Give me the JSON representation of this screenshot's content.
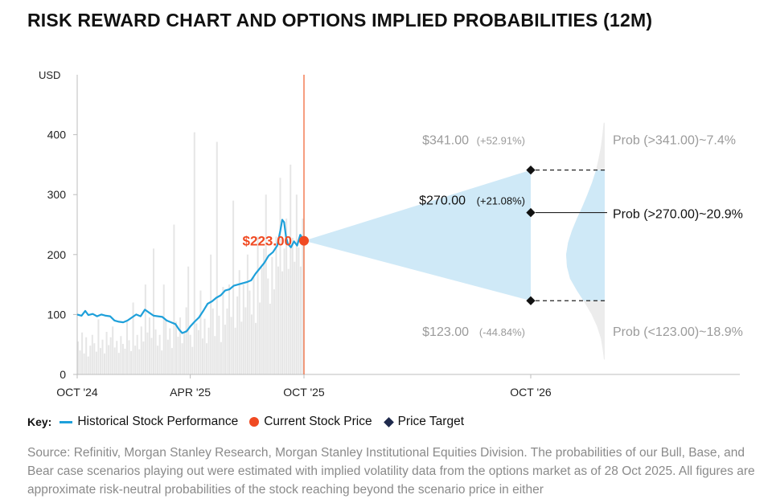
{
  "title": "RISK REWARD CHART AND OPTIONS IMPLIED PROBABILITIES (12M)",
  "colors": {
    "history": "#1ea0da",
    "current": "#f04a22",
    "target": "#1f2a4d",
    "cone": "#cfe9f7",
    "volume": "#e6e6e6",
    "divider": "#f06a3c"
  },
  "chart_data": {
    "type": "line",
    "ylabel": "USD",
    "ylim": [
      0,
      500
    ],
    "yticks": [
      0,
      100,
      200,
      300,
      400
    ],
    "xticks": [
      {
        "label": "OCT '24",
        "date": "2024-10-28"
      },
      {
        "label": "APR '25",
        "date": "2025-04-28"
      },
      {
        "label": "OCT '25",
        "date": "2025-10-28"
      },
      {
        "label": "OCT '26",
        "date": "2026-10-28"
      }
    ],
    "history": {
      "name": "Historical Stock Performance",
      "points": [
        [
          "2024-10-28",
          100
        ],
        [
          "2024-11-04",
          98
        ],
        [
          "2024-11-10",
          106
        ],
        [
          "2024-11-15",
          99
        ],
        [
          "2024-11-22",
          101
        ],
        [
          "2024-11-29",
          97
        ],
        [
          "2024-12-06",
          100
        ],
        [
          "2024-12-13",
          98
        ],
        [
          "2024-12-20",
          97
        ],
        [
          "2024-12-27",
          90
        ],
        [
          "2025-01-03",
          88
        ],
        [
          "2025-01-10",
          87
        ],
        [
          "2025-01-17",
          90
        ],
        [
          "2025-01-24",
          95
        ],
        [
          "2025-01-31",
          100
        ],
        [
          "2025-02-07",
          97
        ],
        [
          "2025-02-14",
          108
        ],
        [
          "2025-02-21",
          103
        ],
        [
          "2025-02-28",
          98
        ],
        [
          "2025-03-07",
          97
        ],
        [
          "2025-03-14",
          96
        ],
        [
          "2025-03-21",
          90
        ],
        [
          "2025-03-28",
          87
        ],
        [
          "2025-04-04",
          84
        ],
        [
          "2025-04-10",
          75
        ],
        [
          "2025-04-15",
          69
        ],
        [
          "2025-04-22",
          72
        ],
        [
          "2025-04-28",
          80
        ],
        [
          "2025-05-05",
          88
        ],
        [
          "2025-05-12",
          95
        ],
        [
          "2025-05-19",
          106
        ],
        [
          "2025-05-26",
          118
        ],
        [
          "2025-06-02",
          122
        ],
        [
          "2025-06-09",
          128
        ],
        [
          "2025-06-16",
          132
        ],
        [
          "2025-06-23",
          140
        ],
        [
          "2025-06-30",
          142
        ],
        [
          "2025-07-07",
          148
        ],
        [
          "2025-07-14",
          150
        ],
        [
          "2025-07-21",
          152
        ],
        [
          "2025-07-28",
          154
        ],
        [
          "2025-08-04",
          157
        ],
        [
          "2025-08-11",
          168
        ],
        [
          "2025-08-18",
          177
        ],
        [
          "2025-08-25",
          186
        ],
        [
          "2025-09-01",
          198
        ],
        [
          "2025-09-08",
          204
        ],
        [
          "2025-09-15",
          215
        ],
        [
          "2025-09-20",
          240
        ],
        [
          "2025-09-23",
          258
        ],
        [
          "2025-09-26",
          254
        ],
        [
          "2025-09-29",
          230
        ],
        [
          "2025-10-02",
          218
        ],
        [
          "2025-10-07",
          212
        ],
        [
          "2025-10-12",
          222
        ],
        [
          "2025-10-17",
          215
        ],
        [
          "2025-10-22",
          233
        ],
        [
          "2025-10-25",
          228
        ],
        [
          "2025-10-28",
          223
        ]
      ]
    },
    "volume_bars": [
      55,
      40,
      70,
      35,
      62,
      30,
      48,
      66,
      52,
      38,
      92,
      44,
      58,
      35,
      71,
      49,
      62,
      80,
      45,
      56,
      36,
      64,
      51,
      43,
      88,
      57,
      39,
      120,
      48,
      66,
      42,
      80,
      55,
      150,
      70,
      95,
      61,
      210,
      75,
      48,
      66,
      40,
      150,
      92,
      58,
      77,
      44,
      250,
      88,
      63,
      95,
      52,
      70,
      112,
      180,
      66,
      46,
      404,
      85,
      74,
      140,
      60,
      93,
      52,
      78,
      200,
      110,
      64,
      388,
      98,
      54,
      146,
      83,
      110,
      150,
      96,
      290,
      78,
      130,
      174,
      88,
      150,
      112,
      200,
      140,
      100,
      162,
      86,
      230,
      120,
      178,
      210,
      300,
      160,
      118,
      196,
      142,
      230,
      180,
      328,
      172,
      210,
      260,
      176,
      350,
      228,
      188,
      300,
      212,
      180,
      260
    ],
    "current": {
      "name": "Current Stock Price",
      "value": 223.0,
      "label": "$223.00",
      "date": "2025-10-28"
    },
    "targets": [
      {
        "name": "Bull",
        "value": 341.0,
        "label": "$341.00",
        "change": "(+52.91%)",
        "prob": "Prob (>341.00)~7.4%",
        "date": "2026-10-28"
      },
      {
        "name": "Base",
        "value": 270.0,
        "label": "$270.00",
        "change": "(+21.08%)",
        "prob": "Prob (>270.00)~20.9%",
        "date": "2026-10-28"
      },
      {
        "name": "Bear",
        "value": 123.0,
        "label": "$123.00",
        "change": "(-44.84%)",
        "prob": "Prob (<123.00)~18.9%",
        "date": "2026-10-28"
      }
    ],
    "target_marker_name": "Price Target",
    "distribution": {
      "upper_cut": 341.0,
      "lower_cut": 123.0,
      "y": [
        420,
        400,
        380,
        360,
        340,
        320,
        300,
        280,
        260,
        240,
        220,
        200,
        180,
        160,
        140,
        120,
        100,
        80,
        60,
        40,
        25
      ],
      "density": [
        0.03,
        0.06,
        0.1,
        0.16,
        0.23,
        0.33,
        0.45,
        0.58,
        0.72,
        0.85,
        0.95,
        1.0,
        0.98,
        0.9,
        0.72,
        0.52,
        0.34,
        0.2,
        0.1,
        0.05,
        0.02
      ]
    }
  },
  "key": {
    "title": "Key:",
    "history": "Historical Stock Performance",
    "current": "Current Stock Price",
    "target": "Price Target"
  },
  "source": "Source: Refinitiv, Morgan Stanley Research, Morgan Stanley Institutional Equities Division. The probabilities of our Bull, Base, and Bear case scenarios playing out were estimated with implied volatility data from the options market as of 28 Oct 2025. All figures are approximate risk-neutral probabilities of the stock reaching beyond the scenario price in either"
}
